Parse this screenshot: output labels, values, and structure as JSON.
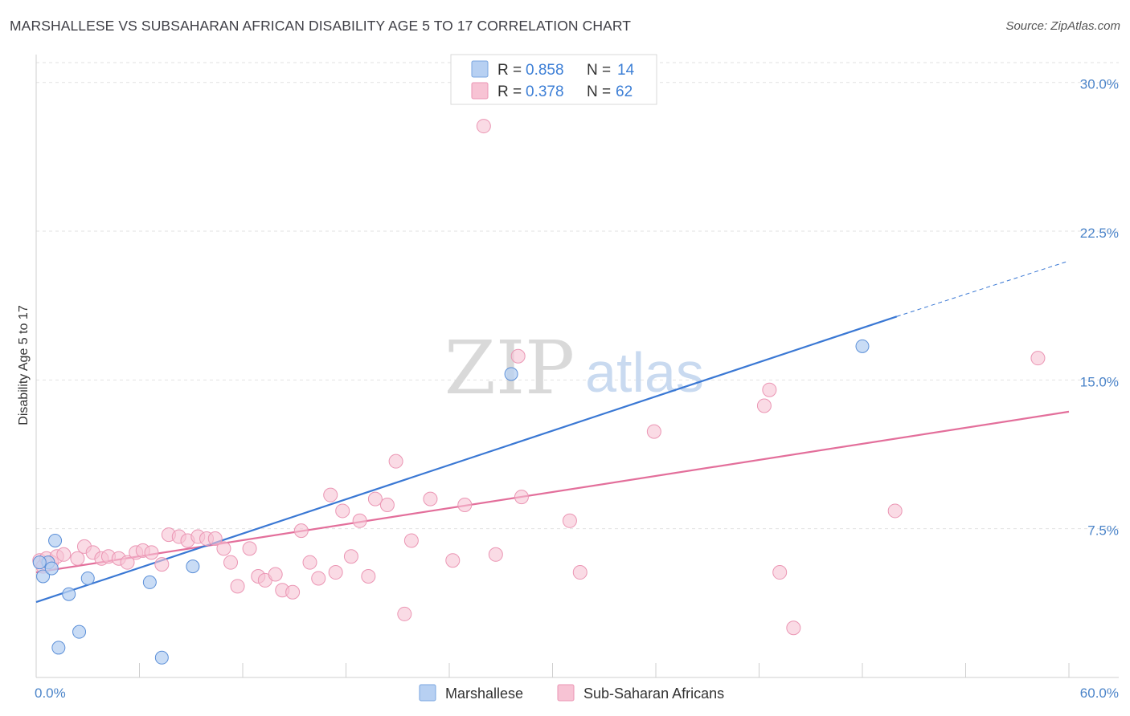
{
  "header": {
    "title": "MARSHALLESE VS SUBSAHARAN AFRICAN DISABILITY AGE 5 TO 17 CORRELATION CHART",
    "source": "Source: ZipAtlas.com"
  },
  "watermark": {
    "zip": "ZIP",
    "atlas": "atlas"
  },
  "colors": {
    "blue": "#3a78d4",
    "blue_fill": "#b7d0f2",
    "pink": "#e36f9b",
    "pink_fill": "#f7c3d4",
    "tick_text": "#4b84c9",
    "grid": "#e2e2e2"
  },
  "legend": {
    "rows": [
      {
        "r_label": "R =",
        "r_value": "0.858",
        "n_label": "N =",
        "n_value": "14"
      },
      {
        "r_label": "R =",
        "r_value": "0.378",
        "n_label": "N =",
        "n_value": "62"
      }
    ]
  },
  "chart_data": {
    "type": "scatter",
    "title": "MARSHALLESE VS SUBSAHARAN AFRICAN DISABILITY AGE 5 TO 17 CORRELATION CHART",
    "xlabel": "",
    "ylabel": "Disability Age 5 to 17",
    "xlim": [
      0,
      60
    ],
    "ylim": [
      0,
      31
    ],
    "x_tick_labels": [
      "0.0%",
      "60.0%"
    ],
    "y_ticks": [
      7.5,
      15.0,
      22.5,
      30.0
    ],
    "y_tick_labels": [
      "7.5%",
      "15.0%",
      "22.5%",
      "30.0%"
    ],
    "grid": true,
    "legend_position": "top-center",
    "series": [
      {
        "name": "Marshallese",
        "color": "#3a78d4",
        "points": [
          [
            0.4,
            5.1
          ],
          [
            0.7,
            5.8
          ],
          [
            0.9,
            5.5
          ],
          [
            1.1,
            6.9
          ],
          [
            1.3,
            1.5
          ],
          [
            1.9,
            4.2
          ],
          [
            2.5,
            2.3
          ],
          [
            3.0,
            5.0
          ],
          [
            6.6,
            4.8
          ],
          [
            7.3,
            1.0
          ],
          [
            9.1,
            5.6
          ],
          [
            27.6,
            15.3
          ],
          [
            48.0,
            16.7
          ],
          [
            0.2,
            5.8
          ]
        ],
        "trend": {
          "x_start": 0,
          "y_start": 3.8,
          "x_end": 50,
          "y_end": 18.2,
          "dashed_to_x": 60,
          "dashed_to_y": 21.0
        }
      },
      {
        "name": "Sub-Saharan Africans",
        "color": "#e36f9b",
        "points": [
          [
            0.2,
            5.9
          ],
          [
            0.4,
            5.6
          ],
          [
            0.6,
            6.0
          ],
          [
            0.9,
            5.8
          ],
          [
            1.2,
            6.1
          ],
          [
            1.6,
            6.2
          ],
          [
            2.4,
            6.0
          ],
          [
            2.8,
            6.6
          ],
          [
            3.3,
            6.3
          ],
          [
            3.8,
            6.0
          ],
          [
            4.2,
            6.1
          ],
          [
            4.8,
            6.0
          ],
          [
            5.3,
            5.8
          ],
          [
            5.8,
            6.3
          ],
          [
            6.2,
            6.4
          ],
          [
            6.7,
            6.3
          ],
          [
            7.3,
            5.7
          ],
          [
            7.7,
            7.2
          ],
          [
            8.3,
            7.1
          ],
          [
            8.8,
            6.9
          ],
          [
            9.4,
            7.1
          ],
          [
            9.9,
            7.0
          ],
          [
            10.4,
            7.0
          ],
          [
            10.9,
            6.5
          ],
          [
            11.3,
            5.8
          ],
          [
            11.7,
            4.6
          ],
          [
            12.4,
            6.5
          ],
          [
            12.9,
            5.1
          ],
          [
            13.3,
            4.9
          ],
          [
            13.9,
            5.2
          ],
          [
            14.3,
            4.4
          ],
          [
            14.9,
            4.3
          ],
          [
            15.4,
            7.4
          ],
          [
            15.9,
            5.8
          ],
          [
            16.4,
            5.0
          ],
          [
            17.1,
            9.2
          ],
          [
            17.4,
            5.3
          ],
          [
            17.8,
            8.4
          ],
          [
            18.3,
            6.1
          ],
          [
            18.8,
            7.9
          ],
          [
            19.3,
            5.1
          ],
          [
            19.7,
            9.0
          ],
          [
            20.4,
            8.7
          ],
          [
            20.9,
            10.9
          ],
          [
            21.4,
            3.2
          ],
          [
            21.8,
            6.9
          ],
          [
            22.9,
            9.0
          ],
          [
            24.2,
            5.9
          ],
          [
            24.9,
            8.7
          ],
          [
            26.0,
            27.8
          ],
          [
            26.7,
            6.2
          ],
          [
            28.2,
            9.1
          ],
          [
            28.0,
            16.2
          ],
          [
            31.0,
            7.9
          ],
          [
            31.6,
            5.3
          ],
          [
            35.9,
            12.4
          ],
          [
            42.3,
            13.7
          ],
          [
            42.6,
            14.5
          ],
          [
            43.2,
            5.3
          ],
          [
            44.0,
            2.5
          ],
          [
            49.9,
            8.4
          ],
          [
            58.2,
            16.1
          ]
        ],
        "trend": {
          "x_start": 0,
          "y_start": 5.3,
          "x_end": 60,
          "y_end": 13.4
        }
      }
    ]
  },
  "bottom_legend": {
    "items": [
      {
        "label": "Marshallese"
      },
      {
        "label": "Sub-Saharan Africans"
      }
    ]
  }
}
